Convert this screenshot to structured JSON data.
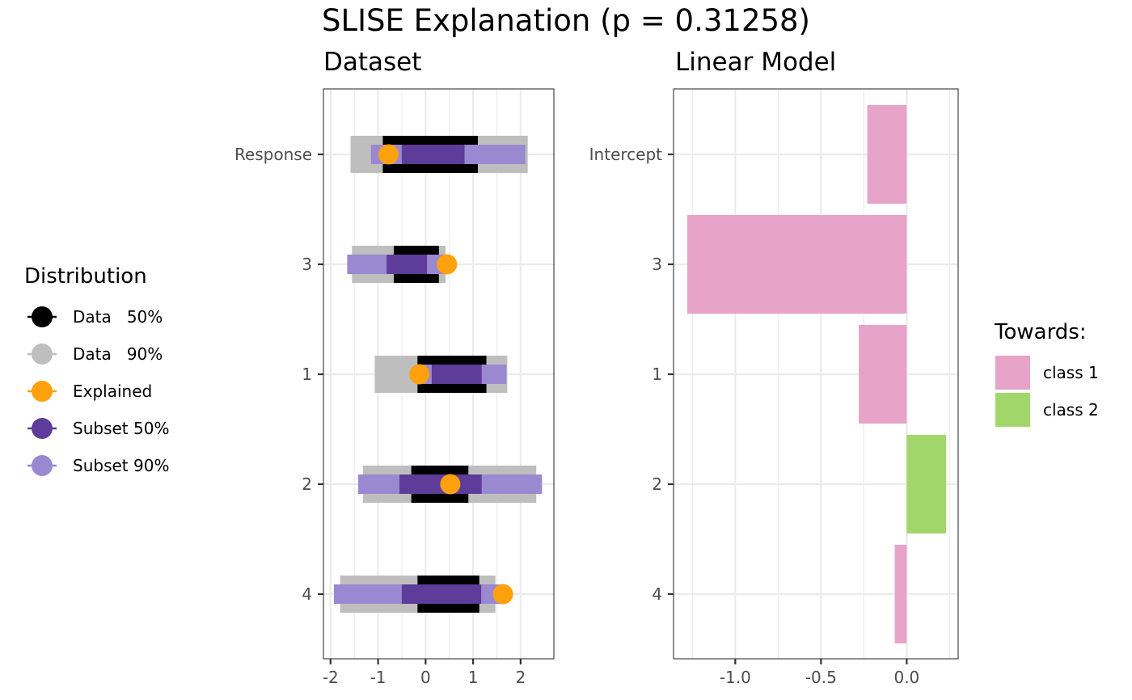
{
  "title": "SLISE Explanation (p = 0.31258)",
  "colors": {
    "data50": "#000000",
    "data90": "#bebebe",
    "explained": "#ffa10c",
    "subset50": "#5e3c99",
    "subset90": "#9a88d0",
    "class1": "#e8a3c8",
    "class2": "#a1d76a"
  },
  "chart_data": [
    {
      "type": "interval",
      "title": "Dataset",
      "categories": [
        "Response",
        "3",
        "1",
        "2",
        "4"
      ],
      "xlim": [
        -2.15,
        2.7
      ],
      "xticks": [
        -2,
        -1,
        0,
        1,
        2
      ],
      "xtick_labels": [
        "-2",
        "-1",
        "0",
        "1",
        "2"
      ],
      "series": [
        {
          "name": "Data   90%",
          "color_key": "data90",
          "kind": "interval",
          "thickness": "wide",
          "values": [
            [
              -1.58,
              2.15
            ],
            [
              -1.55,
              0.42
            ],
            [
              -1.07,
              1.72
            ],
            [
              -1.32,
              2.33
            ],
            [
              -1.8,
              1.47
            ]
          ]
        },
        {
          "name": "Data   50%",
          "color_key": "data50",
          "kind": "interval",
          "thickness": "wide",
          "values": [
            [
              -0.9,
              1.1
            ],
            [
              -0.67,
              0.28
            ],
            [
              -0.17,
              1.28
            ],
            [
              -0.3,
              0.9
            ],
            [
              -0.17,
              1.13
            ]
          ]
        },
        {
          "name": "Subset 90%",
          "color_key": "subset90",
          "kind": "interval",
          "thickness": "narrow",
          "values": [
            [
              -1.15,
              2.1
            ],
            [
              -1.65,
              0.45
            ],
            [
              -0.15,
              1.7
            ],
            [
              -1.42,
              2.45
            ],
            [
              -1.93,
              1.6
            ]
          ]
        },
        {
          "name": "Subset 50%",
          "color_key": "subset50",
          "kind": "interval",
          "thickness": "narrow",
          "values": [
            [
              -0.5,
              0.82
            ],
            [
              -0.82,
              0.03
            ],
            [
              0.13,
              1.18
            ],
            [
              -0.55,
              1.18
            ],
            [
              -0.5,
              1.17
            ]
          ]
        },
        {
          "name": "Explained",
          "color_key": "explained",
          "kind": "point",
          "values": [
            -0.78,
            0.45,
            -0.13,
            0.52,
            1.63
          ]
        }
      ]
    },
    {
      "type": "bar",
      "orientation": "horizontal",
      "title": "Linear Model",
      "categories": [
        "Intercept",
        "3",
        "1",
        "2",
        "4"
      ],
      "values": [
        -0.23,
        -1.28,
        -0.28,
        0.23,
        -0.07
      ],
      "xlim": [
        -1.36,
        0.3
      ],
      "xticks": [
        -1.0,
        -0.5,
        0.0
      ],
      "xtick_labels": [
        "-1.0",
        "-0.5",
        "0.0"
      ]
    }
  ],
  "legends": {
    "distribution": {
      "title": "Distribution",
      "items": [
        {
          "label": "Data   50%",
          "color_key": "data50"
        },
        {
          "label": "Data   90%",
          "color_key": "data90"
        },
        {
          "label": "Explained",
          "color_key": "explained"
        },
        {
          "label": "Subset 50%",
          "color_key": "subset50"
        },
        {
          "label": "Subset 90%",
          "color_key": "subset90"
        }
      ]
    },
    "towards": {
      "title": "Towards:",
      "items": [
        {
          "label": "class 1",
          "color_key": "class1"
        },
        {
          "label": "class 2",
          "color_key": "class2"
        }
      ]
    }
  }
}
